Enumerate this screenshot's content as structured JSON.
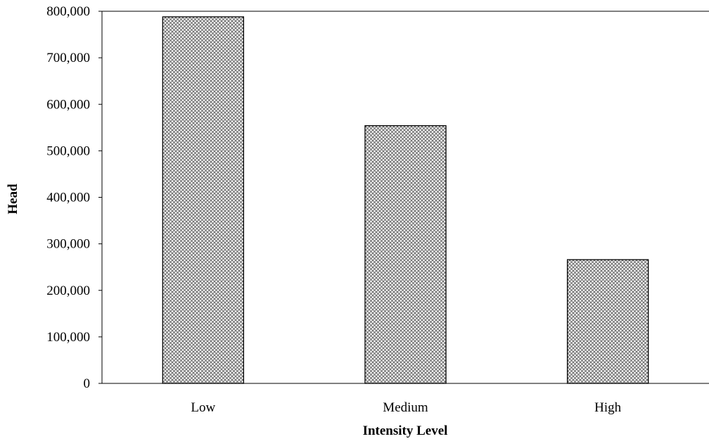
{
  "chart_data": {
    "type": "bar",
    "categories": [
      "Low",
      "Medium",
      "High"
    ],
    "values": [
      788000,
      554000,
      266000
    ],
    "title": "",
    "xlabel": "Intensity Level",
    "ylabel": "Head",
    "ylim": [
      0,
      800000
    ],
    "yticks": [
      0,
      100000,
      200000,
      300000,
      400000,
      500000,
      600000,
      700000,
      800000
    ],
    "ytick_labels": [
      "0",
      "100,000",
      "200,000",
      "300,000",
      "400,000",
      "500,000",
      "600,000",
      "700,000",
      "800,000"
    ],
    "grid": false,
    "legend": "none",
    "bar_fill": "crosshatch",
    "bar_color": "#7f7f7f",
    "edge_color": "#000000"
  }
}
